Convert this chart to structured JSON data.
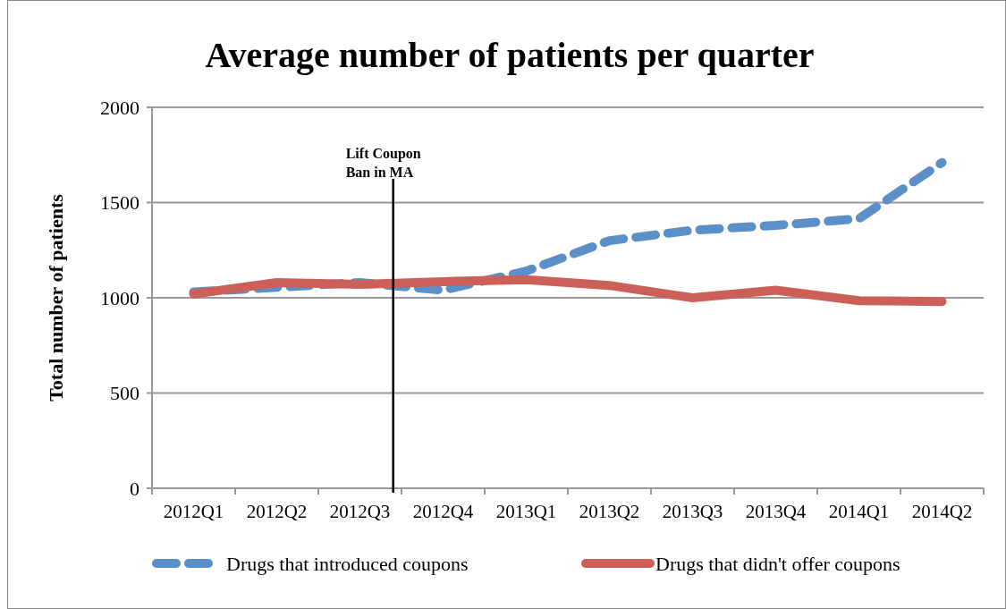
{
  "chart_data": {
    "type": "line",
    "title": "Average number of patients per quarter",
    "ylabel": "Total number of patients",
    "categories": [
      "2012Q1",
      "2012Q2",
      "2012Q3",
      "2012Q4",
      "2013Q1",
      "2013Q2",
      "2013Q3",
      "2013Q4",
      "2014Q1",
      "2014Q2"
    ],
    "series": [
      {
        "name": "Drugs that introduced coupons",
        "color": "#5b8fc7",
        "line_style": "dashed",
        "values": [
          1030,
          1055,
          1080,
          1040,
          1140,
          1300,
          1355,
          1380,
          1415,
          1710
        ]
      },
      {
        "name": "Drugs that didn't offer coupons",
        "color": "#cc6058",
        "line_style": "solid",
        "values": [
          1020,
          1080,
          1070,
          1085,
          1095,
          1065,
          1000,
          1040,
          985,
          980
        ]
      }
    ],
    "ylim": [
      0,
      2000
    ],
    "yticks": [
      0,
      500,
      1000,
      1500,
      2000
    ],
    "grid": "y",
    "legend": "bottom",
    "marker": "none",
    "ref_lines": [
      {
        "axis": "x",
        "value": "2012Q3",
        "label": "Lift Coupon\nBan in MA",
        "color": "#000000"
      }
    ]
  }
}
